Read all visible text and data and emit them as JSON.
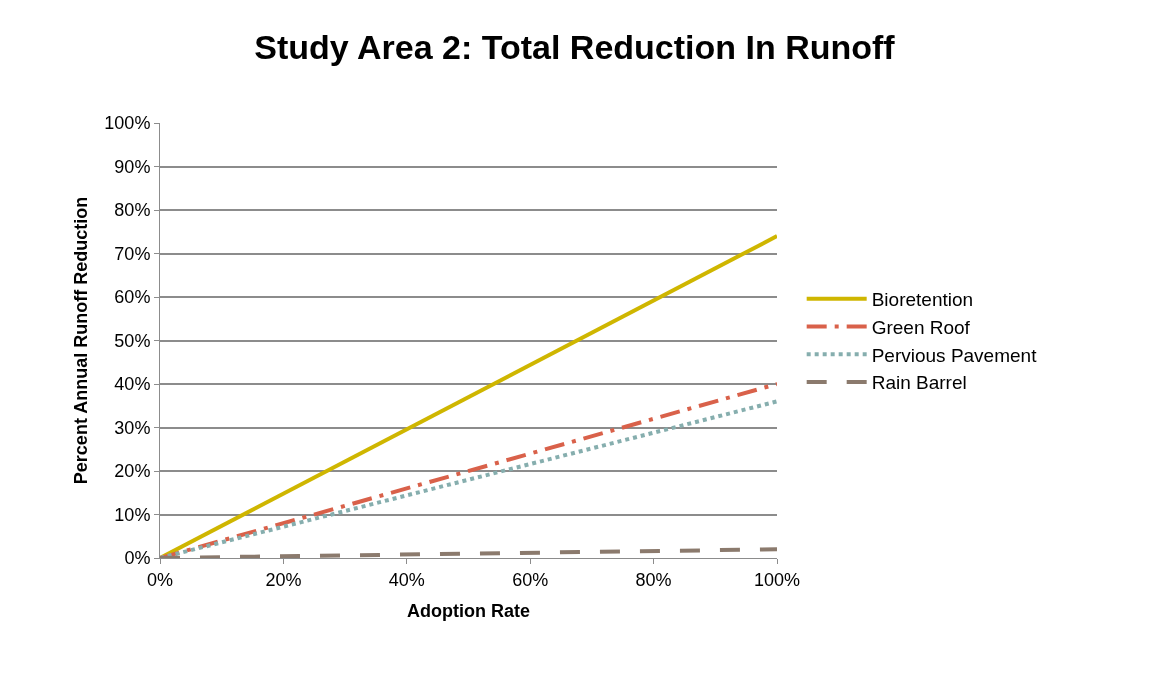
{
  "chart_data": {
    "type": "line",
    "title": "Study Area 2: Total Reduction In Runoff",
    "xlabel": "Adoption Rate",
    "ylabel": "Percent Annual Runoff Reduction",
    "x": [
      0,
      100
    ],
    "series": [
      {
        "name": "Bioretention",
        "color": "#cfb600",
        "values": [
          0,
          74
        ],
        "line_style": "solid"
      },
      {
        "name": "Green Roof",
        "color": "#d9614a",
        "values": [
          0,
          40
        ],
        "line_style": "dashdot"
      },
      {
        "name": "Pervious Pavement",
        "color": "#86aeae",
        "values": [
          0,
          36
        ],
        "line_style": "dotted"
      },
      {
        "name": "Rain Barrel",
        "color": "#8b7a6d",
        "values": [
          0,
          2
        ],
        "line_style": "dashed"
      }
    ],
    "xlim": [
      0,
      100
    ],
    "ylim": [
      0,
      100
    ],
    "xticks": [
      {
        "value": 0,
        "label": "0%"
      },
      {
        "value": 20,
        "label": "20%"
      },
      {
        "value": 40,
        "label": "40%"
      },
      {
        "value": 60,
        "label": "60%"
      },
      {
        "value": 80,
        "label": "80%"
      },
      {
        "value": 100,
        "label": "100%"
      }
    ],
    "yticks": [
      {
        "value": 0,
        "label": "0%"
      },
      {
        "value": 10,
        "label": "10%"
      },
      {
        "value": 20,
        "label": "20%"
      },
      {
        "value": 30,
        "label": "30%"
      },
      {
        "value": 40,
        "label": "40%"
      },
      {
        "value": 50,
        "label": "50%"
      },
      {
        "value": 60,
        "label": "60%"
      },
      {
        "value": 70,
        "label": "70%"
      },
      {
        "value": 80,
        "label": "80%"
      },
      {
        "value": 90,
        "label": "90%"
      },
      {
        "value": 100,
        "label": "100%"
      }
    ],
    "grid": "y",
    "legend": "right",
    "marker": "none"
  }
}
